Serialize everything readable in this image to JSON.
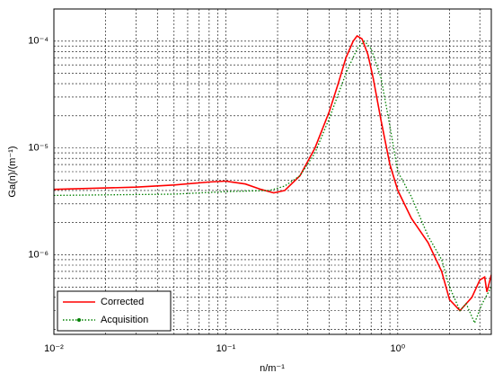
{
  "chart_data": {
    "type": "line",
    "xlabel": "n/m⁻¹",
    "ylabel": "Ga(n)/(m⁻¹)",
    "xscale": "log",
    "yscale": "log",
    "grid": true,
    "legend": "lower left",
    "xlim": [
      0.01,
      3.5
    ],
    "ylim": [
      1.8e-07,
      0.0002
    ],
    "xticks": [
      {
        "value": 0.01,
        "label": "10⁻²"
      },
      {
        "value": 0.1,
        "label": "10⁻¹"
      },
      {
        "value": 1,
        "label": "10⁰"
      }
    ],
    "yticks": [
      {
        "value": 1e-06,
        "label": "10⁻⁶"
      },
      {
        "value": 1e-05,
        "label": "10⁻⁵"
      },
      {
        "value": 0.0001,
        "label": "10⁻⁴"
      }
    ],
    "xminorticks": [
      0.02,
      0.03,
      0.04,
      0.05,
      0.06,
      0.07,
      0.08,
      0.09,
      0.2,
      0.3,
      0.4,
      0.5,
      0.6,
      0.7,
      0.8,
      0.9,
      2,
      3
    ],
    "yminorticks": [
      2e-07,
      3e-07,
      4e-07,
      5e-07,
      6e-07,
      7e-07,
      8e-07,
      9e-07,
      2e-06,
      3e-06,
      4e-06,
      5e-06,
      6e-06,
      7e-06,
      8e-06,
      9e-06,
      2e-05,
      3e-05,
      4e-05,
      5e-05,
      6e-05,
      7e-05,
      8e-05,
      9e-05
    ],
    "series": [
      {
        "name": "Corrected",
        "color": "#ff0000",
        "style": "solid",
        "x": [
          0.01,
          0.03,
          0.05,
          0.08,
          0.1,
          0.13,
          0.16,
          0.19,
          0.22,
          0.27,
          0.33,
          0.4,
          0.45,
          0.5,
          0.55,
          0.58,
          0.62,
          0.67,
          0.72,
          0.8,
          0.9,
          1.0,
          1.2,
          1.5,
          1.8,
          2.0,
          2.3,
          2.7,
          3.0,
          3.2,
          3.3,
          3.5
        ],
        "values": [
          4.1e-06,
          4.3e-06,
          4.5e-06,
          4.8e-06,
          4.9e-06,
          4.6e-06,
          4.1e-06,
          3.8e-06,
          4e-06,
          5.5e-06,
          1e-05,
          2.2e-05,
          4e-05,
          7e-05,
          0.0001,
          0.000112,
          0.000105,
          7.5e-05,
          4.5e-05,
          1.8e-05,
          7e-06,
          4e-06,
          2.2e-06,
          1.3e-06,
          7e-07,
          3.8e-07,
          3e-07,
          4e-07,
          5.8e-07,
          6.2e-07,
          4.5e-07,
          6.5e-07
        ]
      },
      {
        "name": "Acquisition",
        "color": "#008000",
        "style": "dotted",
        "x": [
          0.01,
          0.05,
          0.1,
          0.18,
          0.22,
          0.27,
          0.33,
          0.4,
          0.5,
          0.58,
          0.64,
          0.7,
          0.8,
          0.9,
          1.0,
          1.2,
          1.5,
          1.8,
          2.0,
          2.3,
          2.5,
          2.8,
          3.1,
          3.5
        ],
        "values": [
          3.6e-06,
          3.7e-06,
          3.9e-06,
          4e-06,
          4.4e-06,
          5.5e-06,
          9e-06,
          1.9e-05,
          5e-05,
          8.5e-05,
          0.0001,
          8.5e-05,
          4.5e-05,
          1.6e-05,
          6e-06,
          3.5e-06,
          1.5e-06,
          9e-07,
          5e-07,
          3e-07,
          3.5e-07,
          2.3e-07,
          3.5e-07,
          5e-07
        ]
      }
    ]
  }
}
